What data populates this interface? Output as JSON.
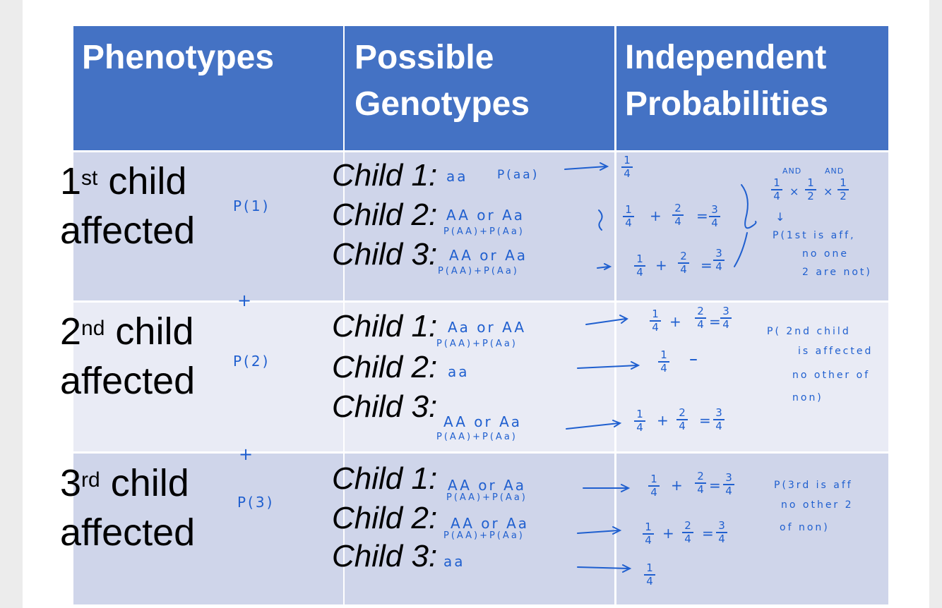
{
  "table": {
    "headers": {
      "phenotypes": "Phenotypes",
      "genotypes_line1": "Possible",
      "genotypes_line2": "Genotypes",
      "probabilities_line1": "Independent",
      "probabilities_line2": "Probabilities"
    },
    "rows": [
      {
        "ordinal_num": "1",
        "ordinal_sup": "st",
        "phenotype_rest": " child",
        "phenotype_line2": "affected",
        "children": [
          "Child 1:",
          "Child 2:",
          "Child 3:"
        ]
      },
      {
        "ordinal_num": "2",
        "ordinal_sup": "nd",
        "phenotype_rest": " child",
        "phenotype_line2": "affected",
        "children": [
          "Child 1:",
          "Child 2:",
          "Child 3:"
        ]
      },
      {
        "ordinal_num": "3",
        "ordinal_sup": "rd",
        "phenotype_rest": " child",
        "phenotype_line2": "affected",
        "children": [
          "Child 1:",
          "Child 2:",
          "Child 3:"
        ]
      }
    ]
  },
  "annotations": {
    "p1": "P(1)",
    "p2": "P(2)",
    "p3": "P(3)",
    "plus": "+",
    "r1_c1_geno": "aa",
    "r1_c1_prob": "P(aa)",
    "r1_c2_geno": "AA or Aa",
    "r1_c2_prob": "P(AA)+P(Aa)",
    "r1_c3_geno": "AA or Aa",
    "r1_c3_prob": "P(AA)+P(Aa)",
    "and_label": "AND",
    "and_label2": "AND",
    "times": "×",
    "arrow_down": "↓",
    "note1_line1": "P(1st is aff,",
    "note1_line2": "no one",
    "note1_line3": "2 are not)",
    "r2_c1_geno": "Aa or AA",
    "r2_c1_prob": "P(AA)+P(Aa)",
    "r2_c2_geno": "aa",
    "r2_c3_geno": "AA or Aa",
    "r2_c3_prob": "P(AA)+P(Aa)",
    "note2_line1": "P( 2nd child",
    "note2_line2": "is affected",
    "note2_line3": "no other of",
    "note2_line4": "non)",
    "r3_c1_geno": "AA or Aa",
    "r3_c1_prob": "P(AA)+P(Aa)",
    "r3_c2_geno": "AA or Aa",
    "r3_c2_prob": "P(AA)+P(Aa)",
    "r3_c3_geno": "aa",
    "note3_line1": "P(3rd is aff",
    "note3_line2": "no other 2",
    "note3_line3": "of non)",
    "eq_plus": "+",
    "eq_equals": "=",
    "frac_num_1": "1",
    "frac_num_2": "2",
    "frac_num_3": "3",
    "frac_den_2": "2",
    "frac_den_4": "4"
  }
}
